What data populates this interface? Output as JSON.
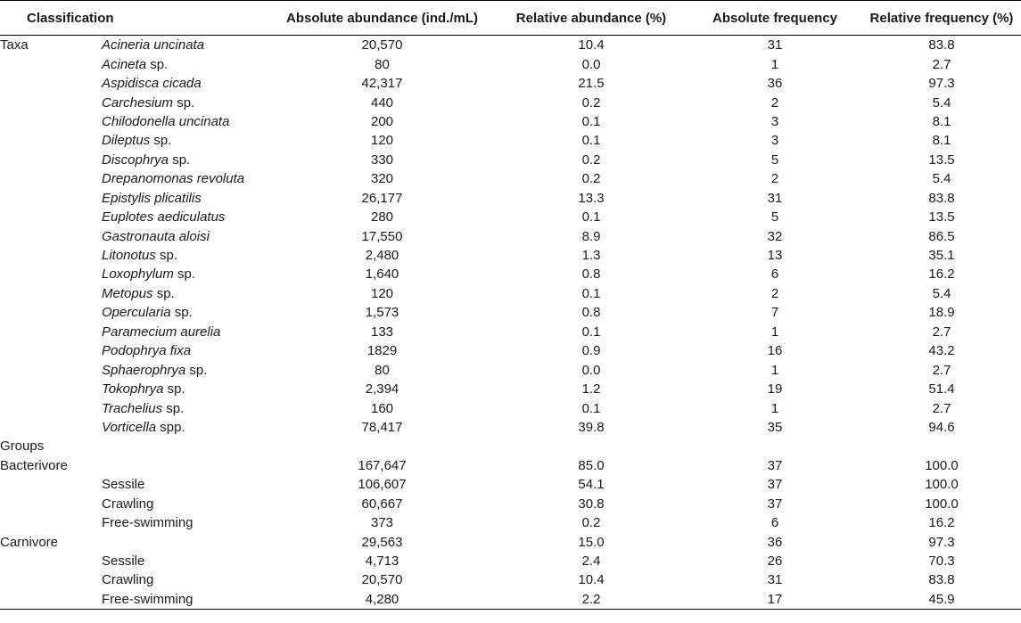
{
  "headers": [
    "Classification",
    "Absolute abundance (ind./mL)",
    "Relative abundance (%)",
    "Absolute frequency",
    "Relative frequency (%)"
  ],
  "rows": [
    {
      "label": "Taxa",
      "species": {
        "italic": "Acineria uncinata",
        "suffix": ""
      },
      "values": [
        "20,570",
        "10.4",
        "31",
        "83.8"
      ]
    },
    {
      "label": "",
      "species": {
        "italic": "Acineta",
        "suffix": " sp."
      },
      "values": [
        "80",
        "0.0",
        "1",
        "2.7"
      ]
    },
    {
      "label": "",
      "species": {
        "italic": "Aspidisca cicada",
        "suffix": ""
      },
      "values": [
        "42,317",
        "21.5",
        "36",
        "97.3"
      ]
    },
    {
      "label": "",
      "species": {
        "italic": "Carchesium",
        "suffix": " sp."
      },
      "values": [
        "440",
        "0.2",
        "2",
        "5.4"
      ]
    },
    {
      "label": "",
      "species": {
        "italic": "Chilodonella uncinata",
        "suffix": ""
      },
      "values": [
        "200",
        "0.1",
        "3",
        "8.1"
      ]
    },
    {
      "label": "",
      "species": {
        "italic": "Dileptus",
        "suffix": " sp."
      },
      "values": [
        "120",
        "0.1",
        "3",
        "8.1"
      ]
    },
    {
      "label": "",
      "species": {
        "italic": "Discophrya",
        "suffix": " sp."
      },
      "values": [
        "330",
        "0.2",
        "5",
        "13.5"
      ]
    },
    {
      "label": "",
      "species": {
        "italic": "Drepanomonas revoluta",
        "suffix": ""
      },
      "values": [
        "320",
        "0.2",
        "2",
        "5.4"
      ]
    },
    {
      "label": "",
      "species": {
        "italic": "Epistylis plicatilis",
        "suffix": ""
      },
      "values": [
        "26,177",
        "13.3",
        "31",
        "83.8"
      ]
    },
    {
      "label": "",
      "species": {
        "italic": "Euplotes aediculatus",
        "suffix": ""
      },
      "values": [
        "280",
        "0.1",
        "5",
        "13.5"
      ]
    },
    {
      "label": "",
      "species": {
        "italic": "Gastronauta aloisi",
        "suffix": ""
      },
      "values": [
        "17,550",
        "8.9",
        "32",
        "86.5"
      ]
    },
    {
      "label": "",
      "species": {
        "italic": "Litonotus",
        "suffix": " sp."
      },
      "values": [
        "2,480",
        "1.3",
        "13",
        "35.1"
      ]
    },
    {
      "label": "",
      "species": {
        "italic": "Loxophylum",
        "suffix": " sp."
      },
      "values": [
        "1,640",
        "0.8",
        "6",
        "16.2"
      ]
    },
    {
      "label": "",
      "species": {
        "italic": "Metopus",
        "suffix": " sp."
      },
      "values": [
        "120",
        "0.1",
        "2",
        "5.4"
      ]
    },
    {
      "label": "",
      "species": {
        "italic": "Opercularia",
        "suffix": " sp."
      },
      "values": [
        "1,573",
        "0.8",
        "7",
        "18.9"
      ]
    },
    {
      "label": "",
      "species": {
        "italic": "Paramecium aurelia",
        "suffix": ""
      },
      "values": [
        "133",
        "0.1",
        "1",
        "2.7"
      ]
    },
    {
      "label": "",
      "species": {
        "italic": "Podophrya fixa",
        "suffix": ""
      },
      "values": [
        "1829",
        "0.9",
        "16",
        "43.2"
      ]
    },
    {
      "label": "",
      "species": {
        "italic": "Sphaerophrya",
        "suffix": " sp."
      },
      "values": [
        "80",
        "0.0",
        "1",
        "2.7"
      ]
    },
    {
      "label": "",
      "species": {
        "italic": "Tokophrya",
        "suffix": " sp."
      },
      "values": [
        "2,394",
        "1.2",
        "19",
        "51.4"
      ]
    },
    {
      "label": "",
      "species": {
        "italic": "Trachelius",
        "suffix": " sp."
      },
      "values": [
        "160",
        "0.1",
        "1",
        "2.7"
      ]
    },
    {
      "label": "",
      "species": {
        "italic": "Vorticella",
        "suffix": " spp."
      },
      "values": [
        "78,417",
        "39.8",
        "35",
        "94.6"
      ]
    },
    {
      "label": "Groups",
      "species": {
        "italic": "",
        "suffix": ""
      },
      "values": [
        "",
        "",
        "",
        ""
      ]
    },
    {
      "label": "Bacterivore",
      "species": {
        "italic": "",
        "suffix": ""
      },
      "values": [
        "167,647",
        "85.0",
        "37",
        "100.0"
      ]
    },
    {
      "label": "",
      "species": {
        "italic": "",
        "suffix": "Sessile"
      },
      "values": [
        "106,607",
        "54.1",
        "37",
        "100.0"
      ]
    },
    {
      "label": "",
      "species": {
        "italic": "",
        "suffix": "Crawling"
      },
      "values": [
        "60,667",
        "30.8",
        "37",
        "100.0"
      ]
    },
    {
      "label": "",
      "species": {
        "italic": "",
        "suffix": "Free-swimming"
      },
      "values": [
        "373",
        "0.2",
        "6",
        "16.2"
      ]
    },
    {
      "label": "Carnivore",
      "species": {
        "italic": "",
        "suffix": ""
      },
      "values": [
        "29,563",
        "15.0",
        "36",
        "97.3"
      ]
    },
    {
      "label": "",
      "species": {
        "italic": "",
        "suffix": "Sessile"
      },
      "values": [
        "4,713",
        "2.4",
        "26",
        "70.3"
      ]
    },
    {
      "label": "",
      "species": {
        "italic": "",
        "suffix": "Crawling"
      },
      "values": [
        "20,570",
        "10.4",
        "31",
        "83.8"
      ]
    },
    {
      "label": "",
      "species": {
        "italic": "",
        "suffix": "Free-swimming"
      },
      "values": [
        "4,280",
        "2.2",
        "17",
        "45.9"
      ]
    }
  ]
}
